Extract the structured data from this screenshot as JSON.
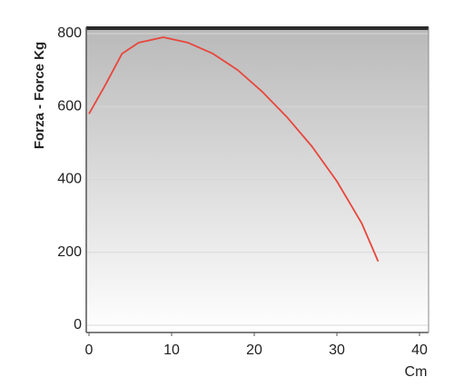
{
  "chart_data": {
    "type": "line",
    "y_label": "Forza - Force Kg",
    "x_label": "Cm",
    "x": [
      0,
      2,
      4,
      6,
      9,
      12,
      15,
      18,
      21,
      24,
      27,
      30,
      33,
      35
    ],
    "values": [
      580,
      660,
      745,
      775,
      790,
      775,
      745,
      700,
      640,
      570,
      490,
      395,
      280,
      175
    ],
    "color": "#e8463c",
    "xlim": [
      0,
      40
    ],
    "xticks": [
      0,
      10,
      20,
      30,
      40
    ],
    "ylim": [
      0,
      800
    ],
    "yticks": [
      0,
      200,
      400,
      600,
      800
    ],
    "grid": true
  }
}
